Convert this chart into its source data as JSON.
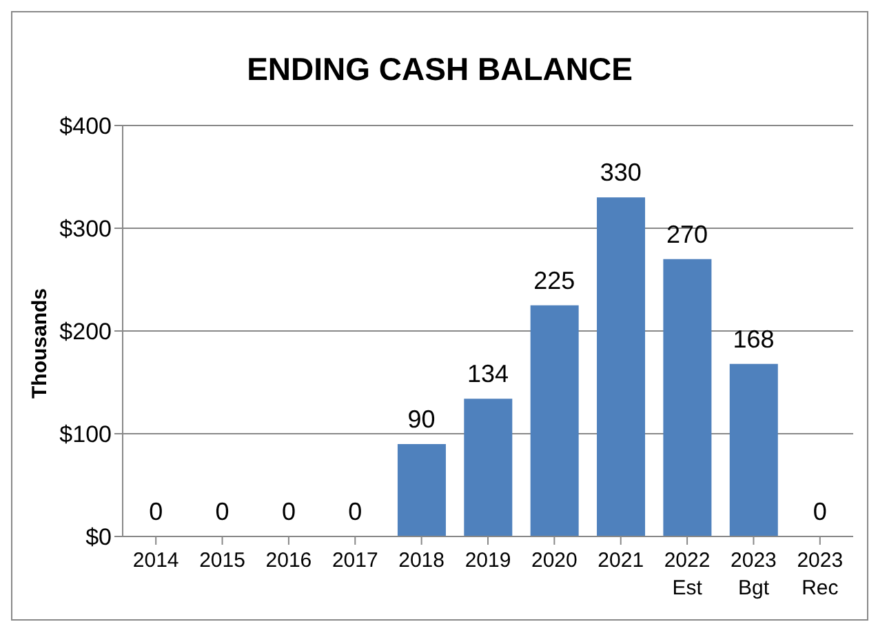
{
  "chart_data": {
    "type": "bar",
    "title": "ENDING CASH BALANCE",
    "ylabel": "Thousands",
    "categories": [
      "2014",
      "2015",
      "2016",
      "2017",
      "2018",
      "2019",
      "2020",
      "2021",
      "2022\nEst",
      "2023\nBgt",
      "2023\nRec"
    ],
    "values": [
      0,
      0,
      0,
      0,
      90,
      134,
      225,
      330,
      270,
      168,
      0
    ],
    "color": "#4f81bd",
    "ylim": [
      0,
      400
    ],
    "yticks": [
      {
        "value": 0,
        "label": "$0"
      },
      {
        "value": 100,
        "label": "$100"
      },
      {
        "value": 200,
        "label": "$200"
      },
      {
        "value": 300,
        "label": "$300"
      },
      {
        "value": 400,
        "label": "$400"
      }
    ],
    "grid": "y",
    "data_labels": true
  }
}
